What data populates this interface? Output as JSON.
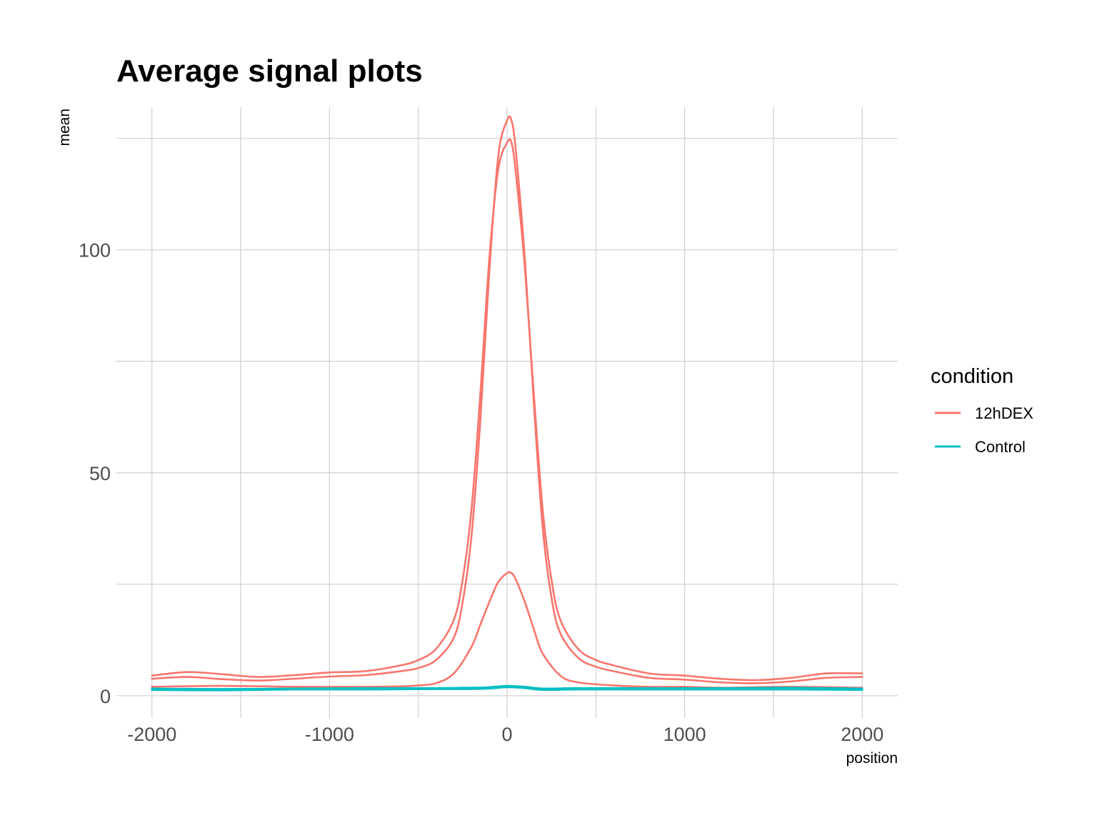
{
  "chart_data": {
    "type": "line",
    "title": "Average signal plots",
    "xlabel": "position",
    "ylabel": "mean",
    "xlim": [
      -2200,
      2200
    ],
    "ylim": [
      -5,
      132
    ],
    "x_major_ticks": [
      -2000,
      -1000,
      0,
      1000,
      2000
    ],
    "x_minor_ticks": [
      -1500,
      -500,
      500,
      1500
    ],
    "y_major_ticks": [
      0,
      50,
      100
    ],
    "y_minor_ticks": [
      25,
      75,
      125
    ],
    "x_tick_labels": [
      "-2000",
      "-1000",
      "0",
      "1000",
      "2000"
    ],
    "y_tick_labels": [
      "0",
      "50",
      "100"
    ],
    "grid": true,
    "legend": {
      "title": "condition",
      "placement": "right",
      "entries": [
        {
          "label": "12hDEX",
          "color": "#F8766D"
        },
        {
          "label": "Control",
          "color": "#00BFC4"
        }
      ]
    },
    "series": [
      {
        "condition": "12hDEX",
        "color": "#F8766D",
        "x": [
          -2000,
          -1800,
          -1600,
          -1400,
          -1200,
          -1000,
          -800,
          -600,
          -500,
          -400,
          -300,
          -250,
          -200,
          -150,
          -100,
          -50,
          0,
          25,
          50,
          100,
          150,
          200,
          250,
          300,
          400,
          500,
          600,
          800,
          1000,
          1200,
          1400,
          1600,
          1800,
          2000
        ],
        "y": [
          4.5,
          5.3,
          4.8,
          4.2,
          4.6,
          5.2,
          5.5,
          6.8,
          8.0,
          10.5,
          17,
          26,
          42,
          68,
          98,
          118,
          124,
          124,
          117,
          96,
          68,
          42,
          26,
          17,
          10.5,
          8.0,
          6.8,
          5.0,
          4.5,
          3.8,
          3.5,
          4.0,
          5.0,
          5.0
        ]
      },
      {
        "condition": "12hDEX",
        "color": "#F8766D",
        "x": [
          -2000,
          -1800,
          -1600,
          -1400,
          -1200,
          -1000,
          -800,
          -600,
          -500,
          -400,
          -300,
          -250,
          -200,
          -150,
          -100,
          -50,
          0,
          25,
          50,
          100,
          150,
          200,
          250,
          300,
          400,
          500,
          600,
          800,
          1000,
          1200,
          1400,
          1600,
          1800,
          2000
        ],
        "y": [
          3.8,
          4.2,
          3.7,
          3.4,
          3.8,
          4.3,
          4.6,
          5.5,
          6.2,
          8.0,
          13,
          21,
          36,
          62,
          95,
          121,
          129,
          129,
          122,
          98,
          66,
          38,
          22,
          14,
          8.5,
          6.5,
          5.5,
          4.0,
          3.6,
          3.0,
          2.8,
          3.2,
          4.0,
          4.2
        ]
      },
      {
        "condition": "12hDEX",
        "color": "#F8766D",
        "x": [
          -2000,
          -1600,
          -1200,
          -800,
          -600,
          -500,
          -400,
          -300,
          -200,
          -150,
          -100,
          -50,
          0,
          25,
          50,
          100,
          150,
          200,
          300,
          400,
          600,
          800,
          1000,
          1200,
          1600,
          2000
        ],
        "y": [
          2.0,
          2.2,
          2.0,
          2.0,
          2.1,
          2.3,
          2.8,
          5.0,
          11,
          16,
          21,
          25.5,
          27.5,
          27.5,
          26,
          21,
          15,
          9.5,
          4.5,
          3.0,
          2.3,
          2.0,
          2.0,
          1.8,
          2.0,
          1.8
        ]
      },
      {
        "condition": "Control",
        "color": "#00BFC4",
        "x": [
          -2000,
          -1600,
          -1200,
          -800,
          -400,
          -200,
          -100,
          0,
          100,
          200,
          400,
          800,
          1200,
          1600,
          2000
        ],
        "y": [
          1.3,
          1.2,
          1.4,
          1.4,
          1.5,
          1.5,
          1.6,
          1.9,
          1.7,
          1.3,
          1.4,
          1.4,
          1.4,
          1.4,
          1.3
        ]
      },
      {
        "condition": "Control",
        "color": "#00BFC4",
        "x": [
          -2000,
          -1600,
          -1200,
          -800,
          -400,
          -200,
          -100,
          0,
          100,
          200,
          400,
          800,
          1200,
          1600,
          2000
        ],
        "y": [
          1.6,
          1.5,
          1.6,
          1.7,
          1.7,
          1.8,
          1.9,
          2.2,
          2.0,
          1.6,
          1.7,
          1.7,
          1.7,
          1.8,
          1.6
        ]
      }
    ]
  }
}
